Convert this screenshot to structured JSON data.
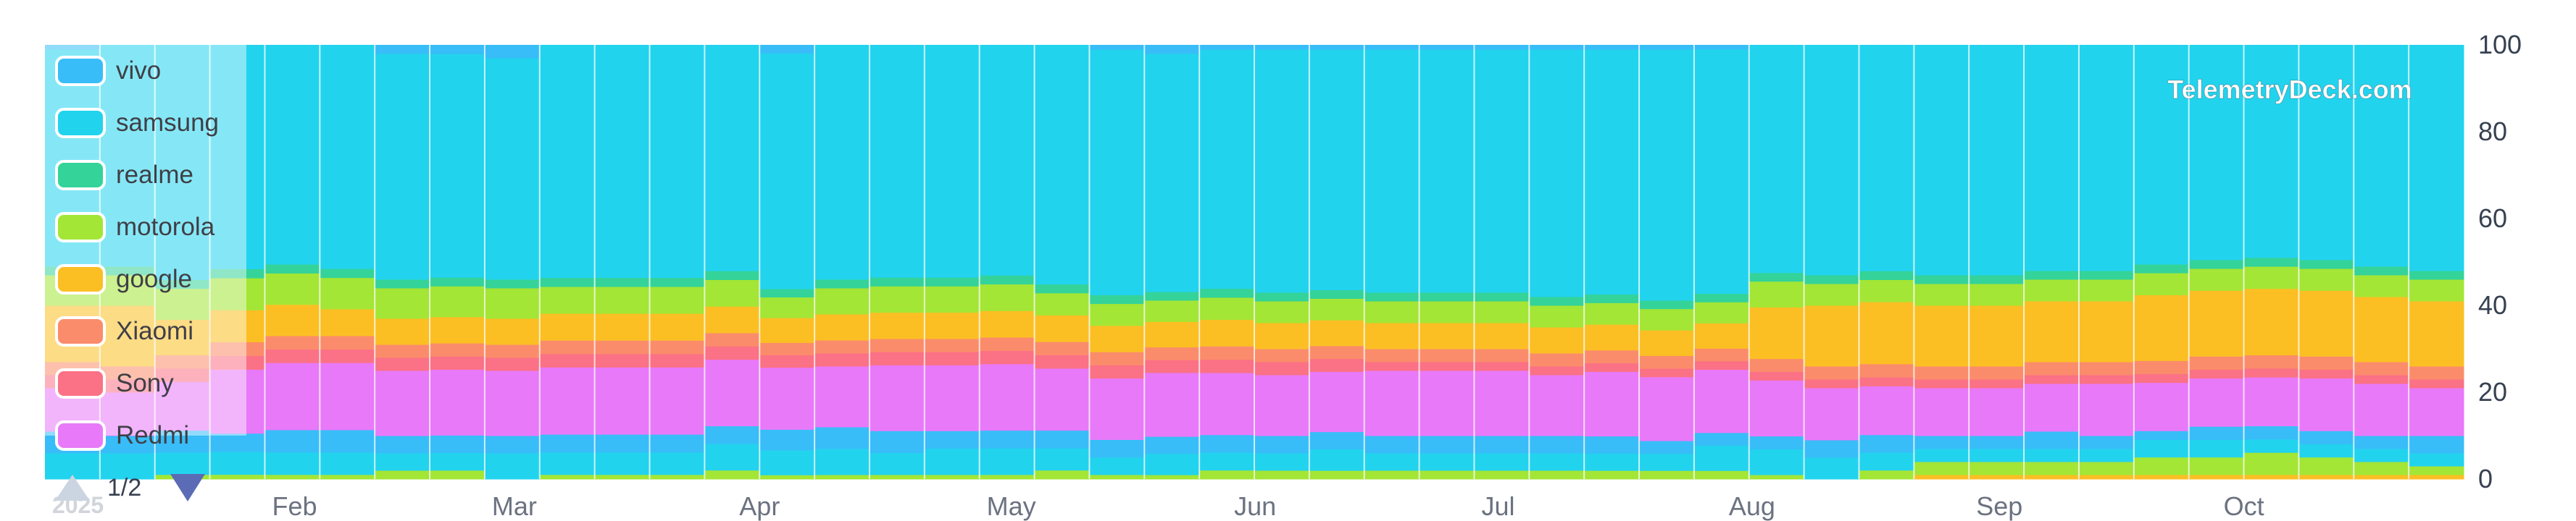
{
  "watermark": "TelemetryDeck.com",
  "year_label": "2025",
  "pager": {
    "text": "1/2"
  },
  "colors": {
    "vivo": "#38bdf8",
    "samsung": "#22d3ee",
    "realme": "#34d399",
    "motorola": "#a3e635",
    "google": "#fbbf24",
    "Xiaomi": "#fb8c6b",
    "Sony": "#fb7185",
    "Redmi": "#e879f9",
    "lower_blue_a": "#38bdf8",
    "lower_blue_b": "#22d3ee",
    "lower_green": "#a3e635",
    "lower_orange": "#fbbf24"
  },
  "legend": [
    {
      "label": "vivo",
      "color": "#38bdf8"
    },
    {
      "label": "samsung",
      "color": "#22d3ee"
    },
    {
      "label": "realme",
      "color": "#34d399"
    },
    {
      "label": "motorola",
      "color": "#a3e635"
    },
    {
      "label": "google",
      "color": "#fbbf24"
    },
    {
      "label": "Xiaomi",
      "color": "#fb8c6b"
    },
    {
      "label": "Sony",
      "color": "#fb7185"
    },
    {
      "label": "Redmi",
      "color": "#e879f9"
    }
  ],
  "chart_data": {
    "type": "area",
    "stacked": true,
    "normalized": true,
    "ylim": [
      0,
      100
    ],
    "y_ticks": [
      0,
      20,
      40,
      60,
      80,
      100
    ],
    "y_axis_position": "right",
    "legend_position": "top-left",
    "x_tick_labels": [
      "Feb",
      "Mar",
      "Apr",
      "May",
      "Jun",
      "Jul",
      "Aug",
      "Sep",
      "Oct"
    ],
    "periods": 44,
    "x_tick_period_index": [
      4,
      8,
      12.5,
      17,
      21.5,
      26,
      30.5,
      35,
      39.5
    ],
    "series": [
      {
        "name": "lower-orange",
        "color": "#fbbf24",
        "values": [
          0,
          0,
          0,
          0,
          0,
          0,
          0,
          0,
          0,
          0,
          0,
          0,
          0,
          0,
          0,
          0,
          0,
          0,
          0,
          0,
          0,
          0,
          0,
          0,
          0,
          0,
          0,
          0,
          0,
          0,
          0,
          0,
          0,
          0,
          1,
          1,
          1,
          1,
          1,
          1,
          1,
          1,
          1,
          1
        ]
      },
      {
        "name": "lower-green",
        "color": "#a3e635",
        "values": [
          0,
          0,
          1,
          1,
          1,
          1,
          2,
          2,
          0,
          1,
          1,
          1,
          2,
          1,
          1,
          1,
          1,
          1,
          2,
          1,
          1,
          2,
          2,
          2,
          2,
          2,
          2,
          2,
          2,
          2,
          2,
          1,
          0,
          2,
          3,
          3,
          3,
          3,
          4,
          4,
          5,
          4,
          3,
          2
        ]
      },
      {
        "name": "lower-blue-b",
        "color": "#22d3ee",
        "values": [
          6,
          6,
          5,
          5,
          5,
          5,
          4,
          4,
          6,
          5,
          5,
          5,
          6,
          6,
          6,
          5,
          6,
          6,
          5,
          4,
          5,
          4,
          4,
          5,
          4,
          4,
          4,
          4,
          4,
          4,
          6,
          6,
          5,
          4,
          3,
          3,
          3,
          3,
          4,
          4,
          3,
          3,
          3,
          3
        ]
      },
      {
        "name": "lower-blue-a",
        "color": "#38bdf8",
        "values": [
          5,
          4,
          5,
          4,
          5,
          5,
          4,
          4,
          4,
          4,
          4,
          4,
          4,
          5,
          5,
          5,
          4,
          4,
          4,
          4,
          4,
          4,
          4,
          4,
          4,
          4,
          4,
          4,
          4,
          3,
          3,
          3,
          4,
          4,
          3,
          3,
          4,
          3,
          2,
          3,
          3,
          3,
          3,
          4
        ]
      },
      {
        "name": "Redmi",
        "color": "#e879f9",
        "values": [
          10,
          10,
          11,
          14,
          15,
          15,
          15,
          15,
          15,
          15,
          15,
          15,
          15,
          15,
          14,
          15,
          15,
          15,
          14,
          14,
          15,
          14,
          14,
          14,
          15,
          15,
          15,
          14,
          15,
          15,
          15,
          13,
          12,
          11,
          11,
          11,
          11,
          12,
          11,
          11,
          11,
          12,
          12,
          11
        ]
      },
      {
        "name": "Sony",
        "color": "#fb7185",
        "values": [
          3,
          3,
          3,
          3,
          3,
          3,
          3,
          3,
          3,
          3,
          3,
          3,
          3,
          3,
          3,
          3,
          3,
          3,
          3,
          3,
          3,
          3,
          3,
          3,
          2,
          2,
          2,
          2,
          2,
          2,
          2,
          2,
          2,
          2,
          2,
          2,
          2,
          2,
          2,
          2,
          2,
          2,
          2,
          2
        ]
      },
      {
        "name": "Xiaomi",
        "color": "#fb8c6b",
        "values": [
          3,
          3,
          3,
          3,
          3,
          3,
          3,
          3,
          3,
          3,
          3,
          3,
          3,
          3,
          3,
          3,
          3,
          3,
          3,
          3,
          3,
          3,
          3,
          3,
          3,
          3,
          3,
          3,
          3,
          3,
          3,
          3,
          3,
          3,
          3,
          3,
          3,
          3,
          3,
          3,
          3,
          3,
          3,
          3
        ]
      },
      {
        "name": "google",
        "color": "#fbbf24",
        "values": [
          13,
          14,
          8,
          7,
          7,
          6,
          6,
          6,
          6,
          6,
          6,
          6,
          6,
          6,
          6,
          6,
          6,
          6,
          6,
          6,
          6,
          6,
          6,
          6,
          6,
          6,
          6,
          6,
          6,
          6,
          6,
          12,
          14,
          14,
          14,
          14,
          14,
          14,
          15,
          15,
          15,
          15,
          15,
          15
        ]
      },
      {
        "name": "motorola",
        "color": "#a3e635",
        "values": [
          7,
          7,
          7,
          7,
          7,
          7,
          7,
          7,
          7,
          6,
          6,
          6,
          6,
          5,
          6,
          6,
          6,
          6,
          5,
          5,
          5,
          5,
          5,
          5,
          5,
          5,
          5,
          5,
          5,
          5,
          5,
          6,
          5,
          5,
          5,
          5,
          5,
          5,
          5,
          5,
          5,
          5,
          5,
          5
        ]
      },
      {
        "name": "realme",
        "color": "#34d399",
        "values": [
          2,
          2,
          2,
          2,
          2,
          2,
          2,
          2,
          2,
          2,
          2,
          2,
          2,
          2,
          2,
          2,
          2,
          2,
          2,
          2,
          2,
          2,
          2,
          2,
          2,
          2,
          2,
          2,
          2,
          2,
          2,
          2,
          2,
          2,
          2,
          2,
          2,
          2,
          2,
          2,
          2,
          2,
          2,
          2
        ]
      },
      {
        "name": "samsung",
        "color": "#22d3ee",
        "values": [
          50,
          51,
          53,
          49,
          49,
          50,
          52,
          51,
          51,
          52,
          52,
          52,
          51,
          57,
          54,
          53,
          53,
          52,
          54,
          56,
          56,
          54,
          56,
          56,
          56,
          56,
          56,
          57,
          57,
          59,
          58,
          53,
          53,
          51,
          53,
          53,
          52,
          52,
          50,
          49,
          48,
          49,
          51,
          52
        ]
      },
      {
        "name": "vivo",
        "color": "#38bdf8",
        "values": [
          1,
          0,
          0,
          0,
          0,
          0,
          2,
          2,
          3,
          0,
          0,
          0,
          0,
          2,
          0,
          0,
          0,
          0,
          0,
          1,
          2,
          1,
          1,
          1,
          1,
          1,
          1,
          1,
          1,
          1,
          1,
          0,
          0,
          0,
          0,
          0,
          0,
          0,
          0,
          0,
          0,
          0,
          0,
          0
        ]
      }
    ]
  }
}
